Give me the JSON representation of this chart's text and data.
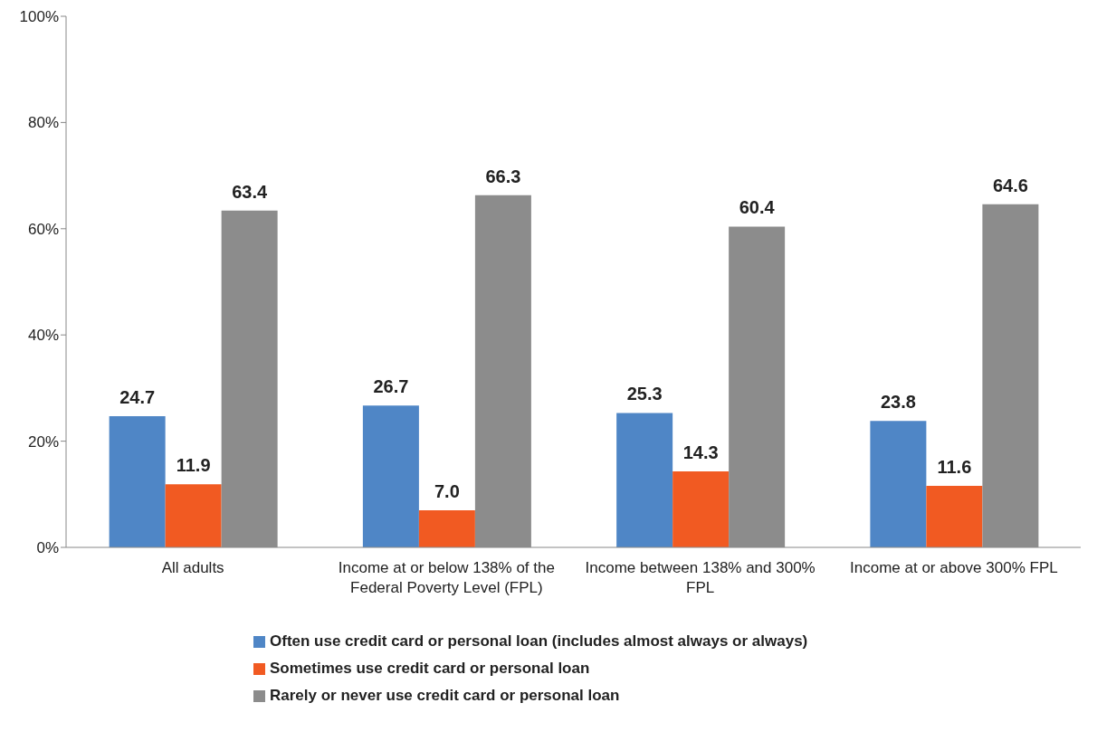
{
  "chart_data": {
    "type": "bar",
    "categories": [
      "All adults",
      "Income at or below 138% of the Federal Poverty Level (FPL)",
      "Income between 138% and 300% FPL",
      "Income at or above 300% FPL"
    ],
    "series": [
      {
        "name": "Often use credit card or personal loan (includes almost always or always)",
        "color": "#4f86c6",
        "values": [
          24.7,
          26.7,
          25.3,
          23.8
        ],
        "value_labels": [
          "24.7",
          "26.7",
          "25.3",
          "23.8"
        ]
      },
      {
        "name": "Sometimes use credit card or personal loan",
        "color": "#f15a22",
        "values": [
          11.9,
          7.0,
          14.3,
          11.6
        ],
        "value_labels": [
          "11.9",
          "7.0",
          "14.3",
          "11.6"
        ]
      },
      {
        "name": "Rarely or never use credit card or personal loan",
        "color": "#8c8c8c",
        "values": [
          63.4,
          66.3,
          60.4,
          64.6
        ],
        "value_labels": [
          "63.4",
          "66.3",
          "60.4",
          "64.6"
        ]
      }
    ],
    "ylim": [
      0,
      100
    ],
    "yticks": [
      {
        "value": 0,
        "label": "0%"
      },
      {
        "value": 20,
        "label": "20%"
      },
      {
        "value": 40,
        "label": "40%"
      },
      {
        "value": 60,
        "label": "60%"
      },
      {
        "value": 80,
        "label": "80%"
      },
      {
        "value": 100,
        "label": "100%"
      }
    ],
    "grid": false,
    "legend": "bottom"
  }
}
